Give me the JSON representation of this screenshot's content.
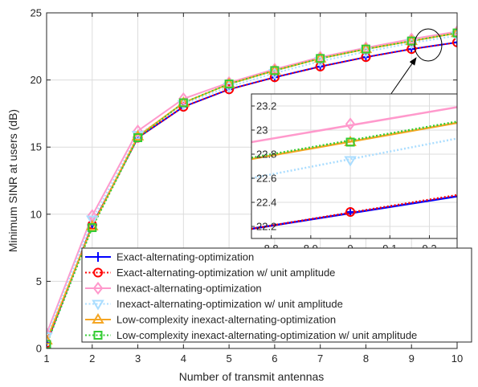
{
  "chart_data": {
    "type": "line",
    "title": "",
    "xlabel": "Number of transmit antennas",
    "ylabel": "Minimum SINR at users (dB)",
    "xlim": [
      1,
      10
    ],
    "ylim": [
      0,
      25
    ],
    "x_ticks": [
      1,
      2,
      3,
      4,
      5,
      6,
      7,
      8,
      9,
      10
    ],
    "y_ticks": [
      0,
      5,
      10,
      15,
      20,
      25
    ],
    "grid": true,
    "legend_position": "bottom-right",
    "x": [
      1,
      2,
      3,
      4,
      5,
      6,
      7,
      8,
      9,
      10
    ],
    "series": [
      {
        "name": "Exact-alternating-optimization",
        "color": "#0000ff",
        "line": "solid",
        "marker": "plus",
        "values": [
          0.4,
          9.2,
          15.7,
          18.0,
          19.3,
          20.2,
          21.0,
          21.7,
          22.3,
          22.8
        ]
      },
      {
        "name": "Exact-alternating-optimization w/ unit amplitude",
        "color": "#ff0000",
        "line": "dotted",
        "marker": "circle",
        "values": [
          0.4,
          9.2,
          15.7,
          18.0,
          19.3,
          20.2,
          21.0,
          21.7,
          22.3,
          22.8
        ]
      },
      {
        "name": "Inexact-alternating-optimization",
        "color": "#ff99cc",
        "line": "solid",
        "marker": "diamond",
        "values": [
          1.1,
          9.9,
          16.2,
          18.6,
          19.8,
          20.8,
          21.7,
          22.4,
          23.05,
          23.6
        ]
      },
      {
        "name": "Inexact-alternating-optimization w/ unit amplitude",
        "color": "#aaddff",
        "line": "dotted",
        "marker": "triangle-down",
        "values": [
          0.9,
          9.6,
          15.9,
          18.2,
          19.5,
          20.5,
          21.4,
          22.1,
          22.75,
          23.3
        ]
      },
      {
        "name": "Low-complexity inexact-alternating-optimization",
        "color": "#f5a623",
        "line": "solid",
        "marker": "triangle-up",
        "values": [
          0.6,
          9.1,
          15.8,
          18.3,
          19.7,
          20.7,
          21.6,
          22.3,
          22.9,
          23.5
        ]
      },
      {
        "name": "Low-complexity inexact-alternating-optimization w/ unit amplitude",
        "color": "#33cc33",
        "line": "dotted",
        "marker": "square",
        "values": [
          0.3,
          9.0,
          15.7,
          18.3,
          19.7,
          20.7,
          21.6,
          22.3,
          22.9,
          23.5
        ]
      }
    ],
    "inset": {
      "xlim": [
        8.75,
        9.27
      ],
      "ylim": [
        22.1,
        23.3
      ],
      "x_ticks": [
        8.8,
        8.9,
        9,
        9.1,
        9.2
      ],
      "y_ticks": [
        22.2,
        22.4,
        22.6,
        22.8,
        23,
        23.2
      ],
      "grid": true,
      "series_segments": [
        {
          "series": 0,
          "y_at_left": 22.18,
          "y_at_right": 22.45
        },
        {
          "series": 1,
          "y_at_left": 22.18,
          "y_at_right": 22.46
        },
        {
          "series": 2,
          "y_at_left": 22.9,
          "y_at_right": 23.19
        },
        {
          "series": 3,
          "y_at_left": 22.6,
          "y_at_right": 22.93
        },
        {
          "series": 4,
          "y_at_left": 22.76,
          "y_at_right": 23.06
        },
        {
          "series": 5,
          "y_at_left": 22.77,
          "y_at_right": 23.07
        }
      ],
      "marker_points": [
        {
          "series": 0,
          "x": 9,
          "y": 22.32
        },
        {
          "series": 1,
          "x": 9,
          "y": 22.32
        },
        {
          "series": 2,
          "x": 9,
          "y": 23.05
        },
        {
          "series": 3,
          "x": 9,
          "y": 22.75
        },
        {
          "series": 4,
          "x": 9,
          "y": 22.9
        },
        {
          "series": 5,
          "x": 9,
          "y": 22.9
        }
      ],
      "zoom_target": {
        "x": 9.0,
        "y": 23.0
      }
    }
  }
}
